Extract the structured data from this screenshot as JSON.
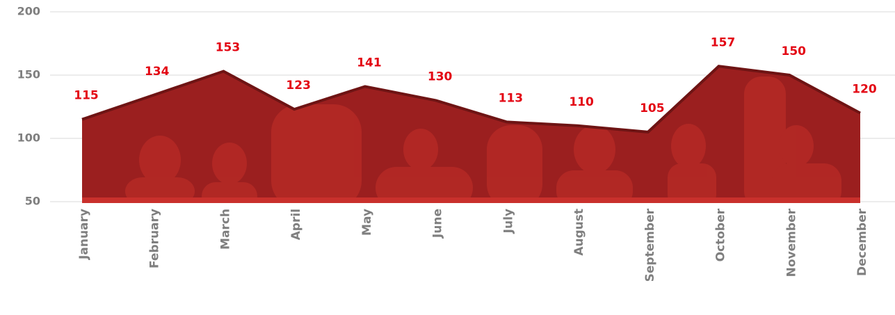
{
  "chart_data": {
    "type": "area",
    "categories": [
      "January",
      "February",
      "March",
      "April",
      "May",
      "June",
      "July",
      "August",
      "September",
      "October",
      "November",
      "December"
    ],
    "values": [
      115,
      134,
      153,
      123,
      141,
      130,
      113,
      110,
      105,
      157,
      150,
      120
    ],
    "color": "#9b1f1f",
    "label_color": "#e30613",
    "ylim": [
      50,
      200
    ],
    "yticks": [
      50,
      100,
      150,
      200
    ],
    "grid": true
  }
}
